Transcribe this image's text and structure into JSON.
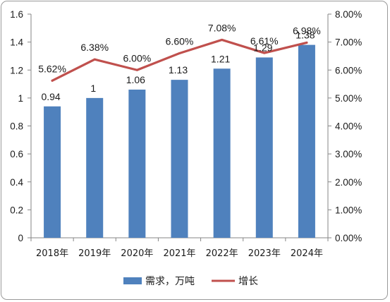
{
  "chart_data": {
    "type": "bar+line",
    "title": "",
    "categories": [
      "2018年",
      "2019年",
      "2020年",
      "2021年",
      "2022年",
      "2023年",
      "2024年"
    ],
    "series": [
      {
        "name": "需求，万吨",
        "type": "bar",
        "axis": "left",
        "values": [
          0.94,
          1,
          1.06,
          1.13,
          1.21,
          1.29,
          1.38
        ],
        "labels": [
          "0.94",
          "1",
          "1.06",
          "1.13",
          "1.21",
          "1.29",
          "1.38"
        ],
        "color": "#4f81bd"
      },
      {
        "name": "增长",
        "type": "line",
        "axis": "right",
        "values": [
          5.62,
          6.38,
          6.0,
          6.6,
          7.08,
          6.61,
          6.98
        ],
        "labels": [
          "5.62%",
          "6.38%",
          "6.00%",
          "6.60%",
          "7.08%",
          "6.61%",
          "6.98%"
        ],
        "color": "#c0504d"
      }
    ],
    "y_left": {
      "range": [
        0,
        1.6
      ],
      "ticks": [
        0,
        0.2,
        0.4,
        0.6,
        0.8,
        1,
        1.2,
        1.4,
        1.6
      ],
      "tick_labels": [
        "0",
        "0.2",
        "0.4",
        "0.6",
        "0.8",
        "1",
        "1.2",
        "1.4",
        "1.6"
      ]
    },
    "y_right": {
      "range": [
        0,
        8
      ],
      "unit": "%",
      "ticks": [
        0,
        1,
        2,
        3,
        4,
        5,
        6,
        7,
        8
      ],
      "tick_labels": [
        "0.00%",
        "1.00%",
        "2.00%",
        "3.00%",
        "4.00%",
        "5.00%",
        "6.00%",
        "7.00%",
        "8.00%"
      ]
    },
    "grid": false,
    "legend_position": "bottom"
  }
}
